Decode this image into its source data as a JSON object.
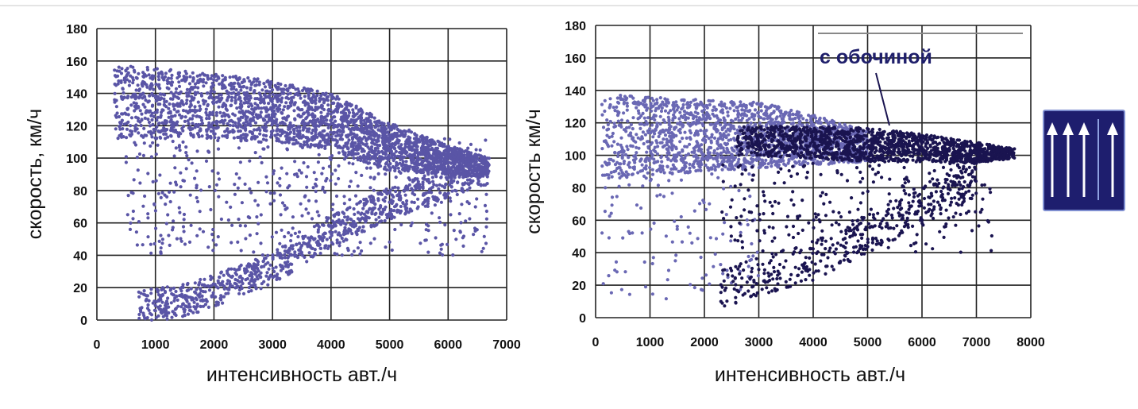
{
  "chart_data": [
    {
      "type": "scatter",
      "xlabel": "интенсивность авт./ч",
      "ylabel": "скорость, км/ч",
      "xlim": [
        0,
        7000
      ],
      "ylim": [
        0,
        180
      ],
      "x_ticks": [
        "0",
        "1000",
        "2000",
        "3000",
        "4000",
        "5000",
        "6000",
        "7000"
      ],
      "y_ticks": [
        "0",
        "20",
        "40",
        "60",
        "80",
        "100",
        "120",
        "140",
        "160",
        "180"
      ],
      "grid": true,
      "series": [
        {
          "color": "#5a55a6",
          "clusters": [
            {
              "kind": "free-flow band",
              "x_range": [
                300,
                6700
              ],
              "y_upper": [
                [
                  300,
                  158
                ],
                [
                  2000,
                  152
                ],
                [
                  3000,
                  148
                ],
                [
                  4000,
                  140
                ],
                [
                  5000,
                  122
                ],
                [
                  6000,
                  108
                ],
                [
                  6700,
                  100
                ]
              ],
              "y_lower": [
                [
                  300,
                  112
                ],
                [
                  2000,
                  112
                ],
                [
                  3000,
                  110
                ],
                [
                  4000,
                  105
                ],
                [
                  5000,
                  92
                ],
                [
                  6000,
                  90
                ],
                [
                  6700,
                  88
                ]
              ],
              "count": 2600
            },
            {
              "kind": "congested branch",
              "x_range": [
                700,
                6600
              ],
              "y_at_x": [
                [
                  700,
                  8
                ],
                [
                  1500,
                  12
                ],
                [
                  2000,
                  18
                ],
                [
                  3000,
                  32
                ],
                [
                  4000,
                  55
                ],
                [
                  5000,
                  72
                ],
                [
                  6000,
                  85
                ],
                [
                  6600,
                  92
                ]
              ],
              "spread": 10,
              "count": 900
            },
            {
              "kind": "transition scatter",
              "x_range": [
                500,
                6700
              ],
              "y_range": [
                40,
                112
              ],
              "count": 500
            }
          ]
        }
      ]
    },
    {
      "type": "scatter",
      "xlabel": "интенсивность авт./ч",
      "ylabel": "скорость км/ч",
      "xlim": [
        0,
        8000
      ],
      "ylim": [
        0,
        180
      ],
      "x_ticks": [
        "0",
        "1000",
        "2000",
        "3000",
        "4000",
        "5000",
        "6000",
        "7000",
        "8000"
      ],
      "y_ticks": [
        "0",
        "20",
        "40",
        "60",
        "80",
        "100",
        "120",
        "140",
        "160",
        "180"
      ],
      "grid": true,
      "annotation": {
        "text": "с обочиной",
        "points_to": [
          5400,
          115
        ]
      },
      "series": [
        {
          "color": "#6a68b4",
          "clusters": [
            {
              "kind": "free-flow band",
              "x_range": [
                100,
                5000
              ],
              "y_upper": [
                [
                  100,
                  138
                ],
                [
                  2000,
                  134
                ],
                [
                  3000,
                  133
                ],
                [
                  4000,
                  125
                ],
                [
                  5000,
                  115
                ]
              ],
              "y_lower": [
                [
                  100,
                  85
                ],
                [
                  2000,
                  90
                ],
                [
                  3000,
                  92
                ],
                [
                  4000,
                  94
                ],
                [
                  5000,
                  96
                ]
              ],
              "count": 1800
            },
            {
              "kind": "sparse low scatter",
              "x_range": [
                100,
                3000
              ],
              "y_range": [
                10,
                90
              ],
              "count": 120
            }
          ]
        },
        {
          "name": "с обочиной",
          "color": "#1a1450",
          "clusters": [
            {
              "kind": "free-flow band",
              "x_range": [
                2600,
                7700
              ],
              "y_upper": [
                [
                  2600,
                  118
                ],
                [
                  4000,
                  118
                ],
                [
                  5000,
                  117
                ],
                [
                  6000,
                  113
                ],
                [
                  7000,
                  108
                ],
                [
                  7700,
                  104
                ]
              ],
              "y_lower": [
                [
                  2600,
                  100
                ],
                [
                  4000,
                  98
                ],
                [
                  5000,
                  96
                ],
                [
                  6000,
                  96
                ],
                [
                  7000,
                  95
                ],
                [
                  7700,
                  98
                ]
              ],
              "count": 1500
            },
            {
              "kind": "congested branch",
              "x_range": [
                2300,
                7000
              ],
              "y_at_x": [
                [
                  2300,
                  18
                ],
                [
                  3000,
                  25
                ],
                [
                  4000,
                  35
                ],
                [
                  5000,
                  52
                ],
                [
                  6000,
                  70
                ],
                [
                  7000,
                  85
                ]
              ],
              "spread": 12,
              "count": 400
            },
            {
              "kind": "transition scatter",
              "x_range": [
                2300,
                7300
              ],
              "y_range": [
                40,
                95
              ],
              "count": 250
            }
          ]
        }
      ]
    }
  ],
  "sign": {
    "icon": "lane-arrows-icon",
    "lanes": 4,
    "background": "#1e1e6e"
  }
}
